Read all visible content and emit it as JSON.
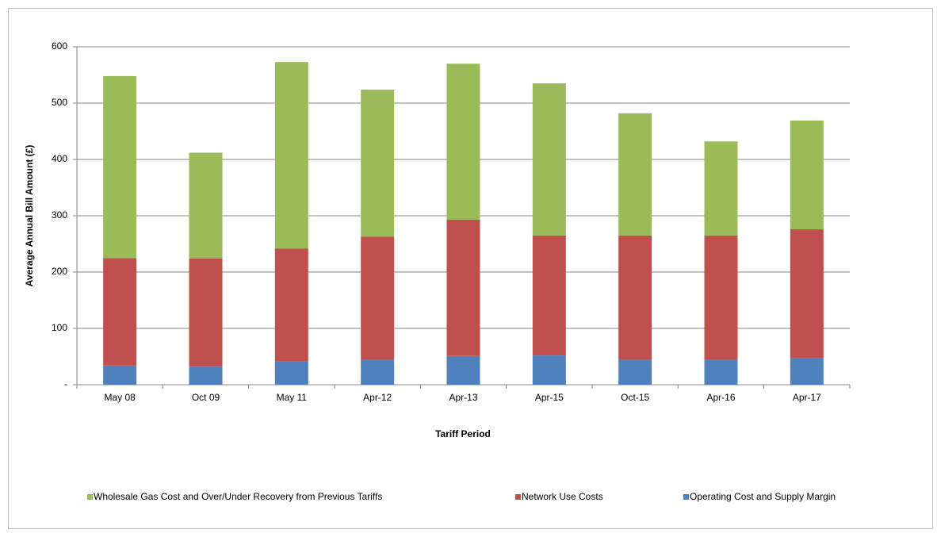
{
  "chart_data": {
    "type": "stacked_bar",
    "xlabel": "Tariff Period",
    "ylabel": "Average Annual Bill Amount (£)",
    "categories": [
      "May 08",
      "Oct 09",
      "May 11",
      "Apr-12",
      "Apr-13",
      "Apr-15",
      "Oct-15",
      "Apr-16",
      "Apr-17"
    ],
    "series": [
      {
        "name": "Operating Cost and Supply Margin",
        "color": "#4f81bd",
        "values": [
          34,
          32,
          41,
          45,
          51,
          52,
          45,
          45,
          47
        ]
      },
      {
        "name": "Network Use Costs",
        "color": "#c0504d",
        "values": [
          191,
          192,
          201,
          218,
          242,
          213,
          220,
          220,
          229
        ]
      },
      {
        "name": "Wholesale Gas Cost and Over/Under Recovery from Previous Tariffs",
        "color": "#9bbb59",
        "values": [
          323,
          188,
          331,
          261,
          277,
          270,
          217,
          167,
          193
        ]
      }
    ],
    "ylim": [
      0,
      600
    ],
    "yticks": [
      {
        "value": 0,
        "label": "-"
      },
      100,
      200,
      300,
      400,
      500,
      600
    ],
    "grid": true,
    "legend": "bottom"
  }
}
